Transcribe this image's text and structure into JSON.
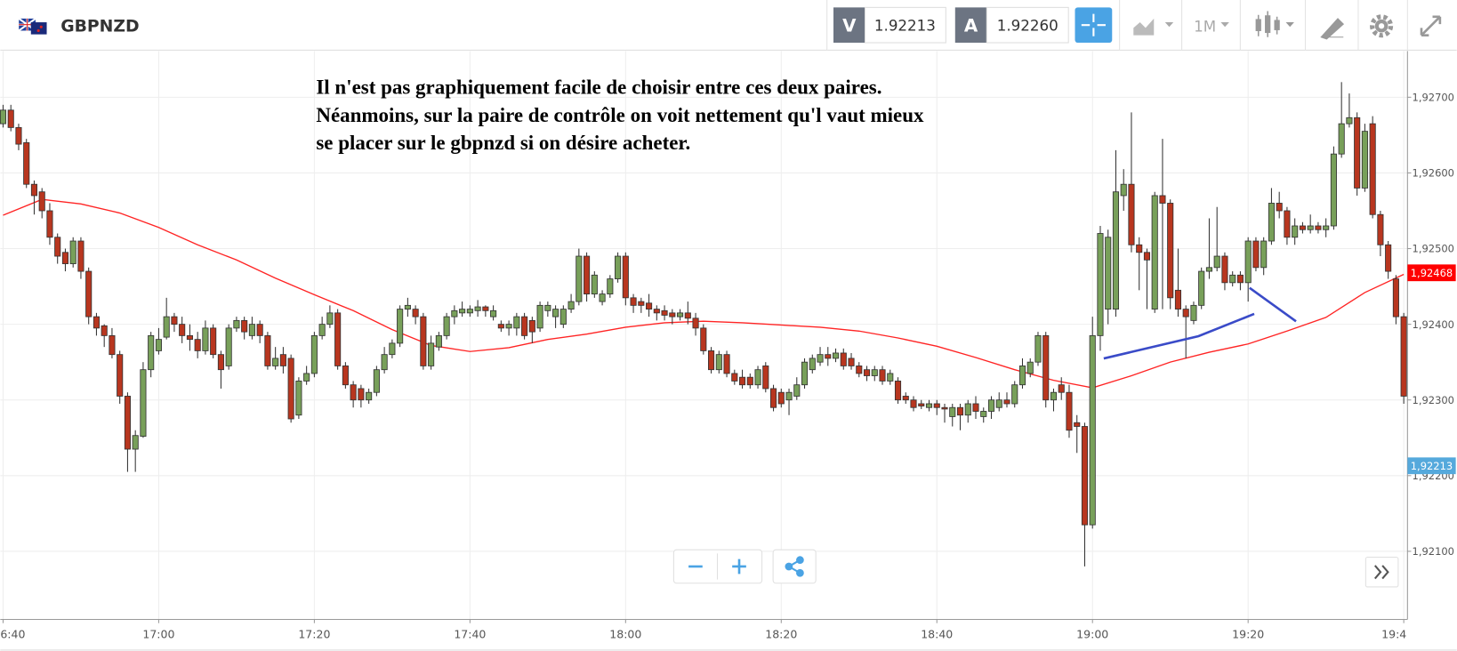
{
  "toolbar": {
    "symbol": "GBPNZD",
    "bid_label": "V",
    "bid": "1.92213",
    "ask_label": "A",
    "ask": "1.92260",
    "timeframe": "1M"
  },
  "annotation": [
    "Il n'est pas graphiquement facile de choisir entre ces deux paires.",
    "Néanmoins, sur la paire de contrôle on voit nettement qu'l vaut mieux",
    "se placer sur le gbpnzd si on désire acheter."
  ],
  "chart_data": {
    "type": "candlestick",
    "x": [
      "16:40",
      "16:41",
      "16:42",
      "16:43",
      "16:44",
      "16:45",
      "16:46",
      "16:47",
      "16:48",
      "16:49",
      "16:50",
      "16:51",
      "16:52",
      "16:53",
      "16:54",
      "16:55",
      "16:56",
      "16:57",
      "16:58",
      "16:59",
      "17:00",
      "17:01",
      "17:02",
      "17:03",
      "17:04",
      "17:05",
      "17:06",
      "17:07",
      "17:08",
      "17:09",
      "17:10",
      "17:11",
      "17:12",
      "17:13",
      "17:14",
      "17:15",
      "17:16",
      "17:17",
      "17:18",
      "17:19",
      "17:20",
      "17:21",
      "17:22",
      "17:23",
      "17:24",
      "17:25",
      "17:26",
      "17:27",
      "17:28",
      "17:29",
      "17:30",
      "17:31",
      "17:32",
      "17:33",
      "17:34",
      "17:35",
      "17:36",
      "17:37",
      "17:38",
      "17:39",
      "17:40",
      "17:41",
      "17:42",
      "17:43",
      "17:44",
      "17:45",
      "17:46",
      "17:47",
      "17:48",
      "17:49",
      "17:50",
      "17:51",
      "17:52",
      "17:53",
      "17:54",
      "17:55",
      "17:56",
      "17:57",
      "17:58",
      "17:59",
      "18:00",
      "18:01",
      "18:02",
      "18:03",
      "18:04",
      "18:05",
      "18:06",
      "18:07",
      "18:08",
      "18:09",
      "18:10",
      "18:11",
      "18:12",
      "18:13",
      "18:14",
      "18:15",
      "18:16",
      "18:17",
      "18:18",
      "18:19",
      "18:20",
      "18:21",
      "18:22",
      "18:23",
      "18:24",
      "18:25",
      "18:26",
      "18:27",
      "18:28",
      "18:29",
      "18:30",
      "18:31",
      "18:32",
      "18:33",
      "18:34",
      "18:35",
      "18:36",
      "18:37",
      "18:38",
      "18:39",
      "18:40",
      "18:41",
      "18:42",
      "18:43",
      "18:44",
      "18:45",
      "18:46",
      "18:47",
      "18:48",
      "18:49",
      "18:50",
      "18:51",
      "18:52",
      "18:53",
      "18:54",
      "18:55",
      "18:56",
      "18:57",
      "18:58",
      "18:59",
      "19:00",
      "19:01",
      "19:02",
      "19:03",
      "19:04",
      "19:05",
      "19:06",
      "19:07",
      "19:08",
      "19:09",
      "19:10",
      "19:11",
      "19:12",
      "19:13",
      "19:14",
      "19:15",
      "19:16",
      "19:17",
      "19:18",
      "19:19",
      "19:20",
      "19:21",
      "19:22",
      "19:23",
      "19:24",
      "19:25",
      "19:26",
      "19:27",
      "19:28",
      "19:29",
      "19:30",
      "19:31",
      "19:32",
      "19:33",
      "19:34",
      "19:35",
      "19:36",
      "19:37",
      "19:38",
      "19:39",
      "19:40"
    ],
    "open": [
      1.92665,
      1.92683,
      1.9266,
      1.9264,
      1.92585,
      1.92575,
      1.9255,
      1.92515,
      1.92495,
      1.9248,
      1.9251,
      1.9247,
      1.9241,
      1.92398,
      1.92385,
      1.9236,
      1.92305,
      1.92235,
      1.92252,
      1.9234,
      1.92365,
      1.92383,
      1.9241,
      1.924,
      1.92385,
      1.9238,
      1.92365,
      1.92395,
      1.9236,
      1.92345,
      1.92395,
      1.92405,
      1.92385,
      1.924,
      1.92385,
      1.92345,
      1.9236,
      1.92355,
      1.9228,
      1.92325,
      1.92335,
      1.92385,
      1.924,
      1.92415,
      1.92345,
      1.9232,
      1.92315,
      1.923,
      1.9231,
      1.9234,
      1.9236,
      1.92375,
      1.9242,
      1.9242,
      1.9241,
      1.92345,
      1.9237,
      1.92385,
      1.9241,
      1.92415,
      1.92415,
      1.92418,
      1.92423,
      1.9241,
      1.924,
      1.92395,
      1.92395,
      1.9241,
      1.92405,
      1.92395,
      1.92418,
      1.9241,
      1.924,
      1.9242,
      1.9243,
      1.9249,
      1.9244,
      1.9243,
      1.9244,
      1.9246,
      1.9249,
      1.92435,
      1.9243,
      1.92428,
      1.9242,
      1.92418,
      1.92415,
      1.9241,
      1.92415,
      1.92408,
      1.92395,
      1.92365,
      1.9234,
      1.9236,
      1.92335,
      1.9233,
      1.9233,
      1.9232,
      1.92345,
      1.92315,
      1.9231,
      1.923,
      1.92305,
      1.9232,
      1.9234,
      1.9235,
      1.9236,
      1.92355,
      1.92362,
      1.92355,
      1.92345,
      1.9234,
      1.92332,
      1.9234,
      1.92325,
      1.92325,
      1.92305,
      1.923,
      1.92295,
      1.9229,
      1.92295,
      1.9229,
      1.92278,
      1.9229,
      1.9228,
      1.92295,
      1.92278,
      1.92285,
      1.9229,
      1.923,
      1.92295,
      1.9232,
      1.92335,
      1.9235,
      1.92385,
      1.923,
      1.9232,
      1.9231,
      1.9227,
      1.92265,
      1.92135,
      1.92385,
      1.9242,
      1.9242,
      1.9257,
      1.92585,
      1.92505,
      1.92495,
      1.9242,
      1.9257,
      1.9256,
      1.92445,
      1.9242,
      1.92405,
      1.92425,
      1.9247,
      1.92475,
      1.9249,
      1.92455,
      1.92465,
      1.92455,
      1.9251,
      1.92475,
      1.9251,
      1.9256,
      1.9255,
      1.92515,
      1.9253,
      1.92525,
      1.9253,
      1.92525,
      1.9253,
      1.92625,
      1.92665,
      1.92673,
      1.9258,
      1.92665,
      1.92545,
      1.92505,
      1.9246,
      1.9241
    ],
    "high": [
      1.9269,
      1.9269,
      1.92665,
      1.92645,
      1.9259,
      1.9258,
      1.9256,
      1.9252,
      1.925,
      1.92515,
      1.92515,
      1.92475,
      1.92415,
      1.924,
      1.92395,
      1.92365,
      1.9231,
      1.9226,
      1.9235,
      1.9239,
      1.92395,
      1.92435,
      1.92415,
      1.9241,
      1.924,
      1.9239,
      1.92405,
      1.924,
      1.92365,
      1.924,
      1.9241,
      1.9241,
      1.9241,
      1.92405,
      1.9239,
      1.9237,
      1.9237,
      1.9236,
      1.9233,
      1.92345,
      1.9239,
      1.9241,
      1.92425,
      1.9242,
      1.9235,
      1.92325,
      1.9232,
      1.92315,
      1.92345,
      1.9237,
      1.9238,
      1.92425,
      1.92435,
      1.92425,
      1.92415,
      1.92385,
      1.9239,
      1.92415,
      1.92425,
      1.9243,
      1.92425,
      1.92432,
      1.92425,
      1.92425,
      1.92405,
      1.92405,
      1.92415,
      1.92415,
      1.9241,
      1.9243,
      1.9243,
      1.92425,
      1.92425,
      1.9244,
      1.925,
      1.92495,
      1.9247,
      1.92445,
      1.92465,
      1.92495,
      1.92495,
      1.9244,
      1.92435,
      1.9244,
      1.92425,
      1.92425,
      1.9242,
      1.9242,
      1.9243,
      1.92415,
      1.924,
      1.9237,
      1.92365,
      1.92365,
      1.9234,
      1.9234,
      1.92335,
      1.92345,
      1.9235,
      1.9232,
      1.92315,
      1.92315,
      1.9233,
      1.92355,
      1.9236,
      1.9237,
      1.9237,
      1.92368,
      1.92368,
      1.92362,
      1.9235,
      1.92345,
      1.92345,
      1.92345,
      1.9234,
      1.9233,
      1.9231,
      1.92305,
      1.923,
      1.923,
      1.923,
      1.92295,
      1.92295,
      1.92295,
      1.923,
      1.92305,
      1.9229,
      1.92305,
      1.9231,
      1.9231,
      1.92325,
      1.92355,
      1.92355,
      1.9239,
      1.9239,
      1.92315,
      1.9233,
      1.9232,
      1.9228,
      1.9227,
      1.9241,
      1.9253,
      1.92525,
      1.9263,
      1.92605,
      1.9268,
      1.92515,
      1.925,
      1.92575,
      1.92645,
      1.92565,
      1.925,
      1.92425,
      1.9243,
      1.92475,
      1.9254,
      1.92555,
      1.92495,
      1.9247,
      1.9247,
      1.92515,
      1.92515,
      1.92515,
      1.9258,
      1.92575,
      1.92555,
      1.9254,
      1.92535,
      1.92545,
      1.92535,
      1.9254,
      1.92635,
      1.9272,
      1.92705,
      1.9268,
      1.92665,
      1.92675,
      1.9255,
      1.9251,
      1.92465,
      1.92415
    ],
    "low": [
      1.9266,
      1.92655,
      1.9263,
      1.9258,
      1.92545,
      1.9254,
      1.92505,
      1.9248,
      1.9247,
      1.92475,
      1.9246,
      1.924,
      1.92385,
      1.9237,
      1.92355,
      1.92295,
      1.92205,
      1.92205,
      1.9225,
      1.9233,
      1.9236,
      1.9238,
      1.9239,
      1.92375,
      1.92365,
      1.92355,
      1.9236,
      1.92355,
      1.92315,
      1.9234,
      1.9239,
      1.9238,
      1.9238,
      1.92375,
      1.9234,
      1.9234,
      1.92335,
      1.9227,
      1.92275,
      1.9232,
      1.9233,
      1.9238,
      1.92395,
      1.9234,
      1.92315,
      1.9229,
      1.9229,
      1.92295,
      1.92305,
      1.92335,
      1.92355,
      1.9237,
      1.9241,
      1.924,
      1.9234,
      1.9234,
      1.92365,
      1.9238,
      1.924,
      1.9241,
      1.9241,
      1.9241,
      1.9241,
      1.92405,
      1.9239,
      1.92385,
      1.92385,
      1.9238,
      1.92375,
      1.9239,
      1.9241,
      1.92395,
      1.92395,
      1.92415,
      1.92425,
      1.9243,
      1.92435,
      1.92425,
      1.92435,
      1.92455,
      1.92425,
      1.92415,
      1.92415,
      1.9241,
      1.92405,
      1.92405,
      1.924,
      1.92405,
      1.924,
      1.92385,
      1.9236,
      1.92335,
      1.92335,
      1.9233,
      1.9232,
      1.92315,
      1.92315,
      1.92315,
      1.9231,
      1.92285,
      1.9229,
      1.9228,
      1.923,
      1.92315,
      1.92335,
      1.92345,
      1.92345,
      1.9235,
      1.9234,
      1.9234,
      1.9233,
      1.92325,
      1.92325,
      1.9232,
      1.9232,
      1.92295,
      1.92295,
      1.92285,
      1.92288,
      1.92285,
      1.9228,
      1.9227,
      1.92265,
      1.9226,
      1.9227,
      1.92275,
      1.9227,
      1.92275,
      1.92285,
      1.9229,
      1.9229,
      1.92315,
      1.9233,
      1.92345,
      1.9229,
      1.92285,
      1.923,
      1.9225,
      1.9223,
      1.9208,
      1.9213,
      1.92365,
      1.924,
      1.9241,
      1.9255,
      1.92495,
      1.92445,
      1.9242,
      1.92415,
      1.9242,
      1.9242,
      1.9241,
      1.92355,
      1.924,
      1.9242,
      1.9246,
      1.9247,
      1.92445,
      1.9245,
      1.92445,
      1.9243,
      1.9247,
      1.92465,
      1.92505,
      1.9254,
      1.92505,
      1.92505,
      1.9252,
      1.9252,
      1.9252,
      1.92515,
      1.92525,
      1.9262,
      1.9266,
      1.9257,
      1.92575,
      1.9254,
      1.9249,
      1.9246,
      1.924,
      1.92295
    ],
    "close": [
      1.92683,
      1.9266,
      1.92638,
      1.92585,
      1.9257,
      1.9255,
      1.92515,
      1.9249,
      1.9248,
      1.9251,
      1.9247,
      1.9241,
      1.92395,
      1.92385,
      1.9236,
      1.92305,
      1.92235,
      1.92253,
      1.9234,
      1.92385,
      1.9238,
      1.9241,
      1.924,
      1.92385,
      1.9238,
      1.92365,
      1.92395,
      1.9236,
      1.9234,
      1.92395,
      1.92405,
      1.9239,
      1.924,
      1.92385,
      1.92345,
      1.92355,
      1.92345,
      1.92275,
      1.92325,
      1.92335,
      1.92385,
      1.924,
      1.92415,
      1.92345,
      1.9232,
      1.923,
      1.923,
      1.9231,
      1.9234,
      1.9236,
      1.92375,
      1.9242,
      1.92425,
      1.9241,
      1.92345,
      1.92375,
      1.92385,
      1.9241,
      1.92418,
      1.9242,
      1.9242,
      1.92423,
      1.92418,
      1.92418,
      1.92395,
      1.924,
      1.9241,
      1.92385,
      1.9239,
      1.92425,
      1.92425,
      1.9242,
      1.9242,
      1.9243,
      1.9249,
      1.9244,
      1.92465,
      1.9244,
      1.9246,
      1.9249,
      1.92435,
      1.92425,
      1.92425,
      1.9242,
      1.92415,
      1.92412,
      1.9241,
      1.92415,
      1.92408,
      1.92395,
      1.92365,
      1.9234,
      1.9236,
      1.92335,
      1.92325,
      1.9232,
      1.9232,
      1.9234,
      1.92315,
      1.9229,
      1.92295,
      1.9231,
      1.9232,
      1.9235,
      1.92355,
      1.9236,
      1.92355,
      1.92362,
      1.92345,
      1.92345,
      1.92335,
      1.92332,
      1.9234,
      1.92325,
      1.92335,
      1.923,
      1.923,
      1.9229,
      1.92292,
      1.92295,
      1.9229,
      1.92288,
      1.9229,
      1.9228,
      1.92295,
      1.92285,
      1.92285,
      1.923,
      1.923,
      1.92295,
      1.9232,
      1.92345,
      1.9235,
      1.92385,
      1.923,
      1.9231,
      1.9231,
      1.9226,
      1.92265,
      1.92135,
      1.92385,
      1.9252,
      1.92515,
      1.92575,
      1.92585,
      1.92505,
      1.92495,
      1.92485,
      1.9257,
      1.9256,
      1.92435,
      1.9242,
      1.9241,
      1.92425,
      1.9247,
      1.92475,
      1.9249,
      1.92455,
      1.92465,
      1.92455,
      1.9251,
      1.92475,
      1.9251,
      1.9256,
      1.9255,
      1.92515,
      1.9253,
      1.92525,
      1.9253,
      1.92525,
      1.9253,
      1.92625,
      1.92665,
      1.92673,
      1.9258,
      1.92655,
      1.92545,
      1.92505,
      1.9247,
      1.9241,
      1.92305
    ],
    "up_color": "#78a05a",
    "down_color": "#b8361f",
    "xlim": [
      "16:40",
      "19:40"
    ],
    "xticks": [
      {
        "value": "16:40",
        "label": "6:40"
      },
      "17:00",
      "17:20",
      "17:40",
      "18:00",
      "18:20",
      "18:40",
      "19:00",
      "19:20",
      {
        "value": "19:40",
        "label": "19:4"
      }
    ],
    "ylim": [
      1.9201,
      1.92761
    ],
    "yticks": [
      {
        "value": 1.921,
        "label": "1,92100"
      },
      {
        "value": 1.922,
        "label": "1,92200"
      },
      {
        "value": 1.923,
        "label": "1,92300"
      },
      {
        "value": 1.924,
        "label": "1,92400"
      },
      {
        "value": 1.925,
        "label": "1,92500"
      },
      {
        "value": 1.926,
        "label": "1,92600"
      },
      {
        "value": 1.927,
        "label": "1,92700"
      }
    ],
    "grid": true,
    "moving_average": {
      "color": "#ff2424",
      "x": [
        "16:40",
        "16:45",
        "16:50",
        "16:55",
        "17:00",
        "17:05",
        "17:10",
        "17:15",
        "17:20",
        "17:25",
        "17:30",
        "17:35",
        "17:40",
        "17:45",
        "17:50",
        "17:55",
        "18:00",
        "18:05",
        "18:10",
        "18:15",
        "18:20",
        "18:25",
        "18:30",
        "18:35",
        "18:40",
        "18:45",
        "18:50",
        "18:55",
        "19:00",
        "19:05",
        "19:10",
        "19:15",
        "19:20",
        "19:25",
        "19:30",
        "19:35",
        "19:40"
      ],
      "values": [
        1.92544,
        1.92565,
        1.92559,
        1.92547,
        1.92528,
        1.92505,
        1.92485,
        1.92461,
        1.92439,
        1.92418,
        1.92393,
        1.92372,
        1.92364,
        1.92369,
        1.9238,
        1.92387,
        1.92396,
        1.92402,
        1.92404,
        1.92402,
        1.92399,
        1.92396,
        1.92391,
        1.92382,
        1.92371,
        1.92356,
        1.9234,
        1.92326,
        1.92316,
        1.92332,
        1.9235,
        1.92363,
        1.92374,
        1.92391,
        1.92409,
        1.92442,
        1.92466
      ]
    },
    "price_markers": [
      {
        "value": 1.92468,
        "label": "1,92468",
        "color": "#ff0000"
      },
      {
        "value": 1.92213,
        "label": "1,92213",
        "color": "#55a9dc"
      }
    ]
  }
}
